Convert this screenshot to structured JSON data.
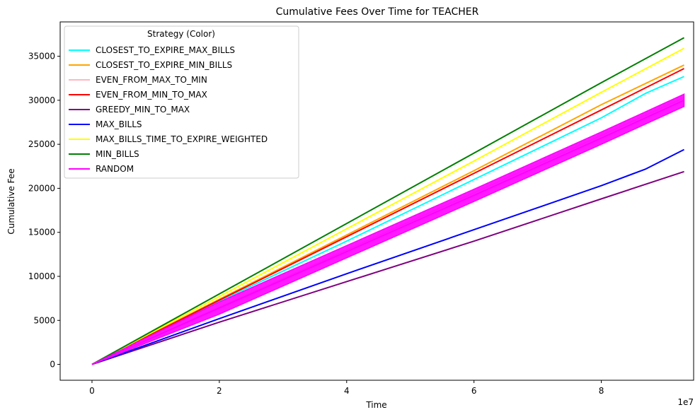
{
  "chart_data": {
    "type": "line",
    "title": "Cumulative Fees Over Time for TEACHER",
    "xlabel": "Time",
    "ylabel": "Cumulative Fee",
    "x_offset_label": "1e7",
    "xlim": [
      -0.5,
      9.45
    ],
    "ylim": [
      -1800,
      38900
    ],
    "xticks": [
      0,
      2,
      4,
      6,
      8
    ],
    "xtick_labels": [
      "0",
      "2",
      "4",
      "6",
      "8"
    ],
    "yticks": [
      0,
      5000,
      10000,
      15000,
      20000,
      25000,
      30000,
      35000
    ],
    "ytick_labels": [
      "0",
      "5000",
      "10000",
      "15000",
      "20000",
      "25000",
      "30000",
      "35000"
    ],
    "grid": false,
    "legend": {
      "title": "Strategy (Color)",
      "placement": "top-left"
    },
    "series": [
      {
        "name": "CLOSEST_TO_EXPIRE_MAX_BILLS",
        "color": "#00FFFF",
        "x": [
          0,
          2,
          4,
          6,
          8,
          8.7,
          9.3
        ],
        "values": [
          0,
          7200,
          14000,
          21000,
          28000,
          30800,
          32700
        ]
      },
      {
        "name": "CLOSEST_TO_EXPIRE_MIN_BILLS",
        "color": "#FFA500",
        "x": [
          0,
          2,
          4,
          6,
          8,
          9.3
        ],
        "values": [
          0,
          7400,
          14700,
          22000,
          29500,
          34000
        ]
      },
      {
        "name": "EVEN_FROM_MAX_TO_MIN",
        "color": "#FFB6C1",
        "x": [
          0,
          2,
          4,
          6,
          8,
          9.3
        ],
        "values": [
          0,
          6500,
          13000,
          19500,
          26000,
          30300
        ]
      },
      {
        "name": "EVEN_FROM_MIN_TO_MAX",
        "color": "#FF0000",
        "x": [
          0,
          2,
          4,
          6,
          8,
          9.3
        ],
        "values": [
          0,
          7300,
          14500,
          21700,
          28900,
          33600
        ]
      },
      {
        "name": "GREEDY_MIN_TO_MAX",
        "color": "#800080",
        "x": [
          0,
          2,
          4,
          6,
          8,
          9.3
        ],
        "values": [
          0,
          4800,
          9400,
          14000,
          18800,
          21900
        ]
      },
      {
        "name": "MAX_BILLS",
        "color": "#0000FF",
        "x": [
          0,
          2,
          4,
          6,
          8,
          8.7,
          9.3
        ],
        "values": [
          0,
          5200,
          10300,
          15300,
          20300,
          22200,
          24400
        ]
      },
      {
        "name": "MAX_BILLS_TIME_TO_EXPIRE_WEIGHTED",
        "color": "#FFFF00",
        "x": [
          0,
          2,
          4,
          6,
          8,
          9.3
        ],
        "values": [
          0,
          7700,
          15400,
          23100,
          30900,
          35900
        ]
      },
      {
        "name": "MIN_BILLS",
        "color": "#008000",
        "x": [
          0,
          2,
          4,
          6,
          8,
          9.3
        ],
        "values": [
          0,
          8000,
          16000,
          24000,
          32000,
          37100
        ]
      },
      {
        "name": "RANDOM",
        "color": "#FF00FF",
        "x": [
          0,
          2,
          4,
          6,
          8,
          9.3
        ],
        "values": [
          0,
          6400,
          12800,
          19200,
          25700,
          30000
        ],
        "band": 700
      }
    ]
  }
}
